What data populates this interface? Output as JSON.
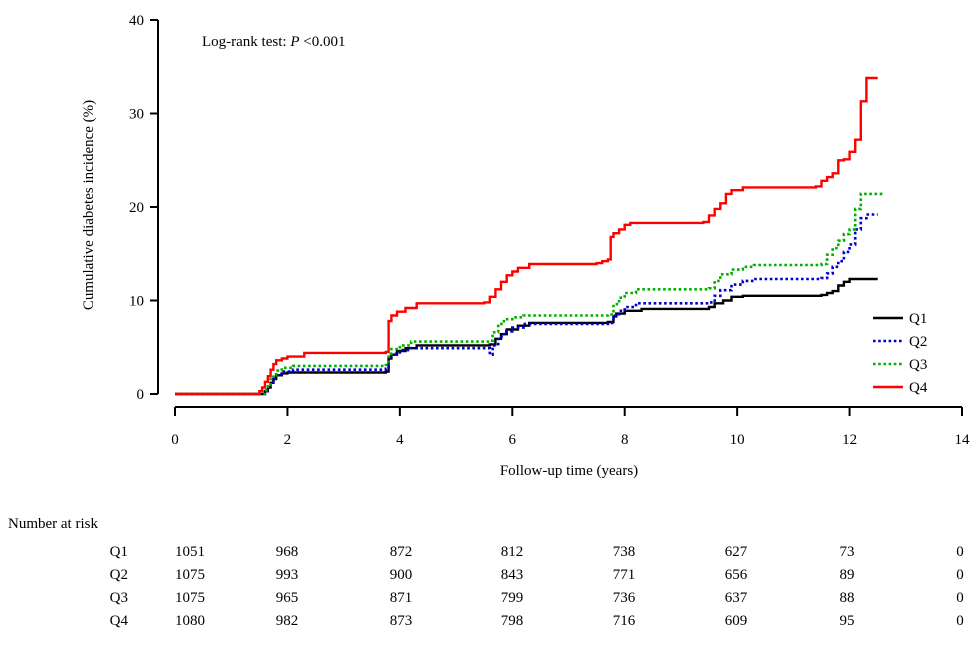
{
  "chart_data": {
    "type": "line",
    "subtype": "step",
    "ylabel": "Cumulative diabetes incidence (%)",
    "xlabel": "Follow-up time (years)",
    "xlim": [
      0,
      14
    ],
    "ylim": [
      0,
      40
    ],
    "xticks": [
      0,
      2,
      4,
      6,
      8,
      10,
      12,
      14
    ],
    "yticks": [
      0,
      10,
      20,
      30,
      40
    ],
    "grid": false,
    "legend_position": "bottom-right",
    "annotation": {
      "prefix": "Log-rank test: ",
      "italic": "P",
      "suffix": " <0.001"
    },
    "series": [
      {
        "name": "Q1",
        "color": "#000000",
        "dash": "solid",
        "points": [
          [
            0,
            0
          ],
          [
            1.5,
            0
          ],
          [
            1.6,
            0.3
          ],
          [
            1.65,
            0.7
          ],
          [
            1.7,
            1.2
          ],
          [
            1.75,
            1.6
          ],
          [
            1.8,
            2.0
          ],
          [
            1.9,
            2.2
          ],
          [
            2.0,
            2.3
          ],
          [
            3.75,
            2.4
          ],
          [
            3.8,
            3.8
          ],
          [
            3.85,
            4.2
          ],
          [
            3.95,
            4.6
          ],
          [
            4.1,
            4.9
          ],
          [
            4.3,
            5.2
          ],
          [
            5.6,
            5.3
          ],
          [
            5.7,
            5.9
          ],
          [
            5.8,
            6.4
          ],
          [
            5.9,
            6.9
          ],
          [
            6.1,
            7.3
          ],
          [
            6.3,
            7.6
          ],
          [
            7.7,
            7.7
          ],
          [
            7.8,
            8.3
          ],
          [
            7.85,
            8.6
          ],
          [
            8.0,
            8.9
          ],
          [
            8.3,
            9.1
          ],
          [
            9.5,
            9.3
          ],
          [
            9.6,
            9.7
          ],
          [
            9.75,
            10.0
          ],
          [
            9.9,
            10.4
          ],
          [
            10.1,
            10.5
          ],
          [
            11.5,
            10.6
          ],
          [
            11.6,
            10.8
          ],
          [
            11.7,
            11.0
          ],
          [
            11.8,
            11.6
          ],
          [
            11.9,
            12.0
          ],
          [
            12.0,
            12.3
          ],
          [
            12.5,
            12.3
          ]
        ]
      },
      {
        "name": "Q2",
        "color": "#0000d0",
        "dash": "dotted",
        "points": [
          [
            0,
            0
          ],
          [
            1.5,
            0
          ],
          [
            1.6,
            0.3
          ],
          [
            1.65,
            0.8
          ],
          [
            1.7,
            1.3
          ],
          [
            1.75,
            1.7
          ],
          [
            1.8,
            2.1
          ],
          [
            1.9,
            2.4
          ],
          [
            2.1,
            2.6
          ],
          [
            3.75,
            2.7
          ],
          [
            3.8,
            3.9
          ],
          [
            3.85,
            4.3
          ],
          [
            4.0,
            4.7
          ],
          [
            4.2,
            4.9
          ],
          [
            5.6,
            4.2
          ],
          [
            5.65,
            5.2
          ],
          [
            5.75,
            6.1
          ],
          [
            5.85,
            6.7
          ],
          [
            6.0,
            7.1
          ],
          [
            6.2,
            7.5
          ],
          [
            7.7,
            7.6
          ],
          [
            7.8,
            8.4
          ],
          [
            7.9,
            8.9
          ],
          [
            8.0,
            9.3
          ],
          [
            8.2,
            9.7
          ],
          [
            9.5,
            9.8
          ],
          [
            9.6,
            10.5
          ],
          [
            9.7,
            11.1
          ],
          [
            9.9,
            11.7
          ],
          [
            10.1,
            12.1
          ],
          [
            10.3,
            12.3
          ],
          [
            11.5,
            12.4
          ],
          [
            11.6,
            12.9
          ],
          [
            11.7,
            13.6
          ],
          [
            11.8,
            14.2
          ],
          [
            11.9,
            15.2
          ],
          [
            12.0,
            16.0
          ],
          [
            12.1,
            17.6
          ],
          [
            12.2,
            18.8
          ],
          [
            12.3,
            19.2
          ],
          [
            12.5,
            19.2
          ]
        ]
      },
      {
        "name": "Q3",
        "color": "#00b000",
        "dash": "dotted",
        "points": [
          [
            0,
            0
          ],
          [
            1.5,
            0
          ],
          [
            1.6,
            0.4
          ],
          [
            1.65,
            1.0
          ],
          [
            1.7,
            1.6
          ],
          [
            1.75,
            2.0
          ],
          [
            1.8,
            2.5
          ],
          [
            1.9,
            2.8
          ],
          [
            2.1,
            3.0
          ],
          [
            3.75,
            3.1
          ],
          [
            3.8,
            4.3
          ],
          [
            3.85,
            4.8
          ],
          [
            4.0,
            5.2
          ],
          [
            4.2,
            5.6
          ],
          [
            5.6,
            5.7
          ],
          [
            5.65,
            6.6
          ],
          [
            5.75,
            7.5
          ],
          [
            5.85,
            8.0
          ],
          [
            6.0,
            8.2
          ],
          [
            6.2,
            8.4
          ],
          [
            7.7,
            8.5
          ],
          [
            7.8,
            9.6
          ],
          [
            7.9,
            10.3
          ],
          [
            8.0,
            10.8
          ],
          [
            8.2,
            11.2
          ],
          [
            9.5,
            11.3
          ],
          [
            9.6,
            12.1
          ],
          [
            9.7,
            12.8
          ],
          [
            9.9,
            13.3
          ],
          [
            10.1,
            13.6
          ],
          [
            10.3,
            13.8
          ],
          [
            11.5,
            13.9
          ],
          [
            11.6,
            14.9
          ],
          [
            11.7,
            15.6
          ],
          [
            11.8,
            16.4
          ],
          [
            11.9,
            17.1
          ],
          [
            12.0,
            17.6
          ],
          [
            12.1,
            19.8
          ],
          [
            12.2,
            21.4
          ],
          [
            12.6,
            21.4
          ]
        ]
      },
      {
        "name": "Q4",
        "color": "#ff0000",
        "dash": "solid",
        "points": [
          [
            0,
            0
          ],
          [
            1.4,
            0
          ],
          [
            1.5,
            0.3
          ],
          [
            1.55,
            0.7
          ],
          [
            1.6,
            1.3
          ],
          [
            1.65,
            1.9
          ],
          [
            1.7,
            2.6
          ],
          [
            1.75,
            3.2
          ],
          [
            1.8,
            3.6
          ],
          [
            1.9,
            3.8
          ],
          [
            2.0,
            4.0
          ],
          [
            2.3,
            4.4
          ],
          [
            3.75,
            4.5
          ],
          [
            3.8,
            7.8
          ],
          [
            3.85,
            8.4
          ],
          [
            3.95,
            8.8
          ],
          [
            4.1,
            9.2
          ],
          [
            4.3,
            9.7
          ],
          [
            5.5,
            9.8
          ],
          [
            5.6,
            10.4
          ],
          [
            5.7,
            11.2
          ],
          [
            5.8,
            12.0
          ],
          [
            5.9,
            12.7
          ],
          [
            6.0,
            13.1
          ],
          [
            6.1,
            13.5
          ],
          [
            6.3,
            13.9
          ],
          [
            7.5,
            14.0
          ],
          [
            7.6,
            14.2
          ],
          [
            7.7,
            14.4
          ],
          [
            7.75,
            16.8
          ],
          [
            7.8,
            17.2
          ],
          [
            7.9,
            17.6
          ],
          [
            8.0,
            18.1
          ],
          [
            8.1,
            18.3
          ],
          [
            9.4,
            18.4
          ],
          [
            9.5,
            19.1
          ],
          [
            9.6,
            19.8
          ],
          [
            9.7,
            20.4
          ],
          [
            9.8,
            21.4
          ],
          [
            9.9,
            21.8
          ],
          [
            10.1,
            22.1
          ],
          [
            11.4,
            22.2
          ],
          [
            11.5,
            22.8
          ],
          [
            11.6,
            23.2
          ],
          [
            11.7,
            23.6
          ],
          [
            11.8,
            25.0
          ],
          [
            11.9,
            25.1
          ],
          [
            12.0,
            25.9
          ],
          [
            12.1,
            27.2
          ],
          [
            12.2,
            31.3
          ],
          [
            12.3,
            33.8
          ],
          [
            12.5,
            33.8
          ]
        ]
      }
    ]
  },
  "risk_table": {
    "title": "Number at risk",
    "rows": [
      {
        "label": "Q1",
        "values": [
          "1051",
          "968",
          "872",
          "812",
          "738",
          "627",
          "73",
          "0"
        ]
      },
      {
        "label": "Q2",
        "values": [
          "1075",
          "993",
          "900",
          "843",
          "771",
          "656",
          "89",
          "0"
        ]
      },
      {
        "label": "Q3",
        "values": [
          "1075",
          "965",
          "871",
          "799",
          "736",
          "637",
          "88",
          "0"
        ]
      },
      {
        "label": "Q4",
        "values": [
          "1080",
          "982",
          "873",
          "798",
          "716",
          "609",
          "95",
          "0"
        ]
      }
    ]
  }
}
